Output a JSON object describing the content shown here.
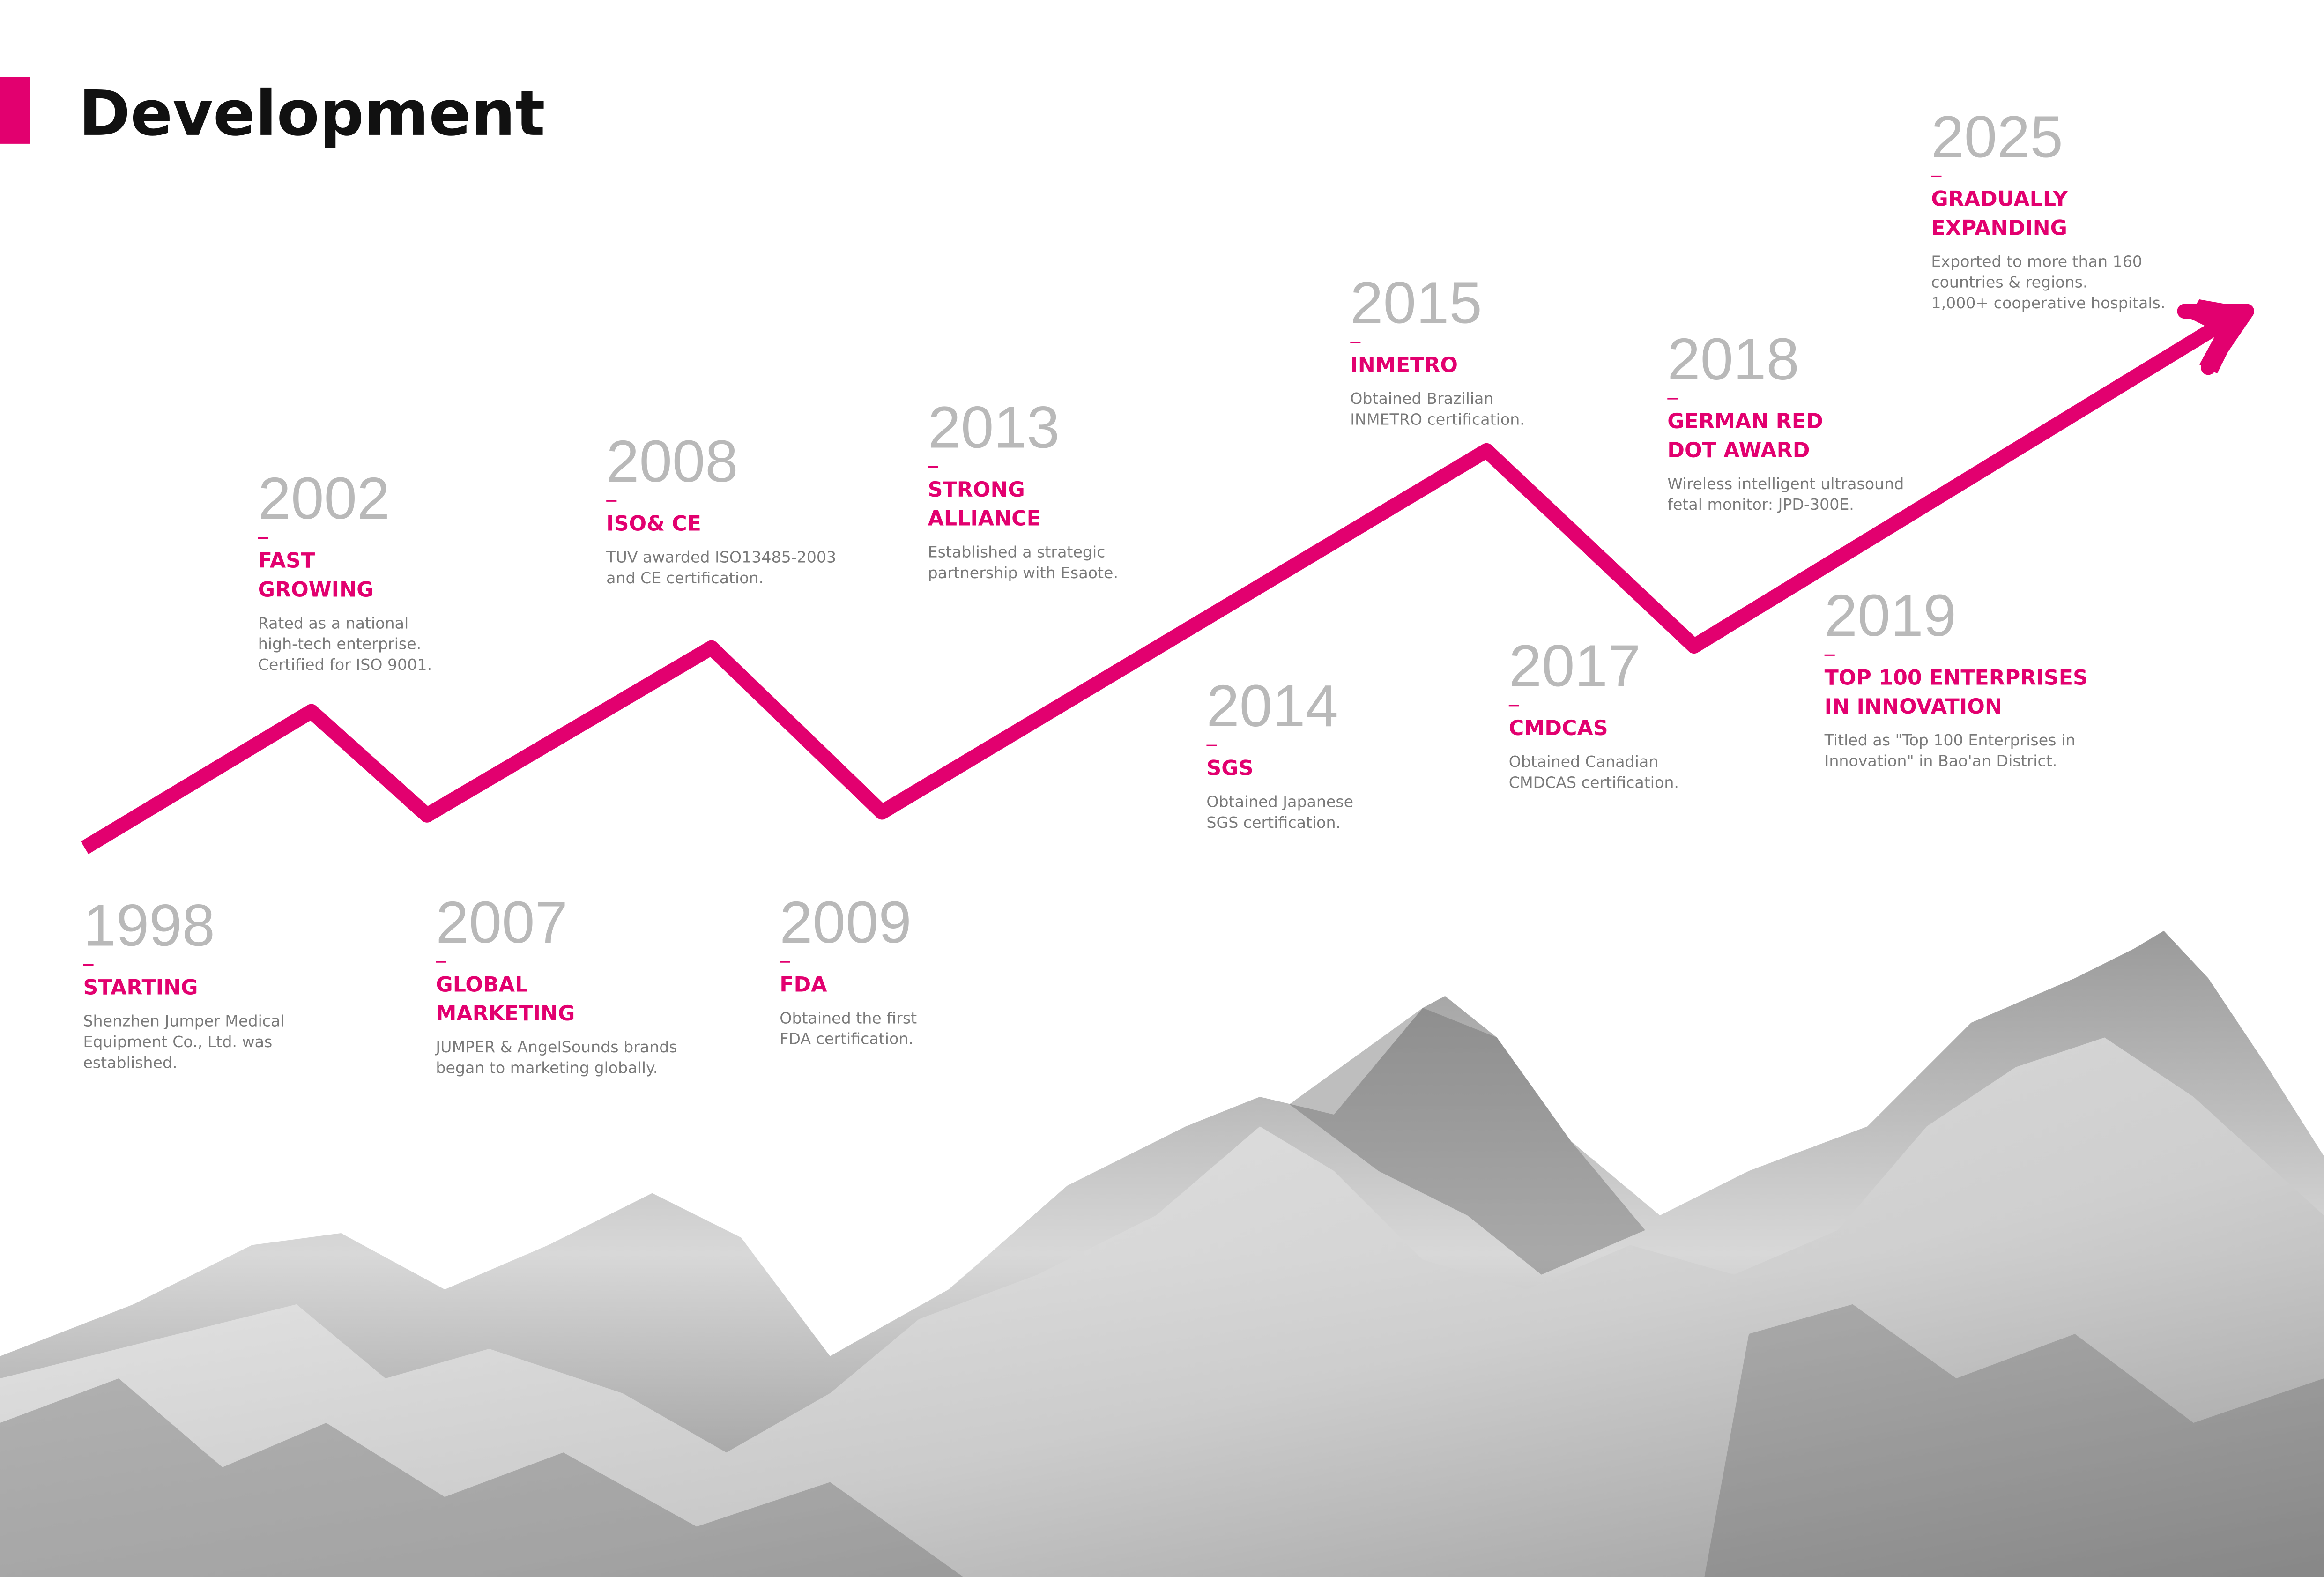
{
  "header": {
    "title": "Development"
  },
  "events": [
    {
      "year": "1998",
      "heading": [
        "STARTING"
      ],
      "description": [
        "Shenzhen Jumper Medical",
        "Equipment Co., Ltd. was",
        "established."
      ]
    },
    {
      "year": "2002",
      "heading": [
        "FAST",
        "GROWING"
      ],
      "description": [
        "Rated as a national",
        "high-tech enterprise.",
        "Certified for ISO 9001."
      ]
    },
    {
      "year": "2007",
      "heading": [
        "GLOBAL",
        "MARKETING"
      ],
      "description": [
        "JUMPER & AngelSounds brands",
        "began to marketing globally."
      ]
    },
    {
      "year": "2008",
      "heading": [
        "ISO& CE"
      ],
      "description": [
        "TUV awarded ISO13485-2003",
        "and CE certification."
      ]
    },
    {
      "year": "2009",
      "heading": [
        "FDA"
      ],
      "description": [
        "Obtained the first",
        "FDA certification."
      ]
    },
    {
      "year": "2013",
      "heading": [
        "STRONG",
        "ALLIANCE"
      ],
      "description": [
        "Established a strategic",
        "partnership with Esaote."
      ]
    },
    {
      "year": "2014",
      "heading": [
        "SGS"
      ],
      "description": [
        "Obtained Japanese",
        "SGS certification."
      ]
    },
    {
      "year": "2015",
      "heading": [
        "INMETRO"
      ],
      "description": [
        "Obtained Brazilian",
        "INMETRO certification."
      ]
    },
    {
      "year": "2017",
      "heading": [
        "CMDCAS"
      ],
      "description": [
        "Obtained Canadian",
        "CMDCAS certification."
      ]
    },
    {
      "year": "2018",
      "heading": [
        "GERMAN RED",
        "DOT AWARD"
      ],
      "description": [
        "Wireless intelligent ultrasound",
        "fetal monitor: JPD-300E."
      ]
    },
    {
      "year": "2019",
      "heading": [
        "TOP 100 ENTERPRISES",
        "IN INNOVATION"
      ],
      "description": [
        "Titled as \"Top 100 Enterprises in",
        "Innovation\" in Bao'an District."
      ]
    },
    {
      "year": "2025",
      "heading": [
        "GRADUALLY",
        "EXPANDING"
      ],
      "description": [
        "Exported to more than 160",
        "countries & regions.",
        "1,000+ cooperative hospitals."
      ]
    }
  ]
}
